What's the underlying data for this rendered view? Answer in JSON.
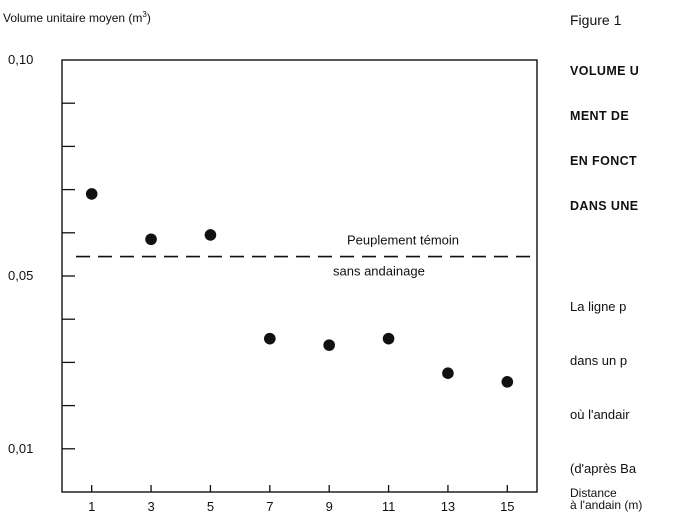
{
  "chart_data": {
    "type": "scatter",
    "ylabel": "Volume unitaire moyen (m",
    "ylabel_unit_sup": "3",
    "ylabel_close": ")",
    "xlabel_line1": "Distance",
    "xlabel_line2": "à l'andain (m)",
    "y_ticks": [
      {
        "label": "0,10",
        "value": 0.1
      },
      {
        "label": "0,05",
        "value": 0.05
      },
      {
        "label": "0,01",
        "value": 0.01
      }
    ],
    "ylim": [
      0.0,
      0.1
    ],
    "x_ticks": [
      "1",
      "3",
      "5",
      "7",
      "9",
      "11",
      "13",
      "15"
    ],
    "xlim": [
      0,
      16
    ],
    "points": [
      {
        "x": 1,
        "y": 0.069
      },
      {
        "x": 3,
        "y": 0.0585
      },
      {
        "x": 5,
        "y": 0.0595
      },
      {
        "x": 7,
        "y": 0.0355
      },
      {
        "x": 9,
        "y": 0.034
      },
      {
        "x": 11,
        "y": 0.0355
      },
      {
        "x": 13,
        "y": 0.0275
      },
      {
        "x": 15,
        "y": 0.0255
      }
    ],
    "reference_line": {
      "value": 0.0545,
      "label_line1": "Peuplement témoin",
      "label_line2": "sans andainage",
      "style": "dashed"
    },
    "grid": false
  },
  "caption": {
    "figure_number": "Figure 1",
    "title_lines": [
      "VOLUME U",
      "MENT DE",
      "EN FONCT",
      "DANS UNE"
    ],
    "text_lines": [
      "La ligne p",
      "dans un p",
      "où l'andair",
      "(d'après Ba"
    ]
  }
}
